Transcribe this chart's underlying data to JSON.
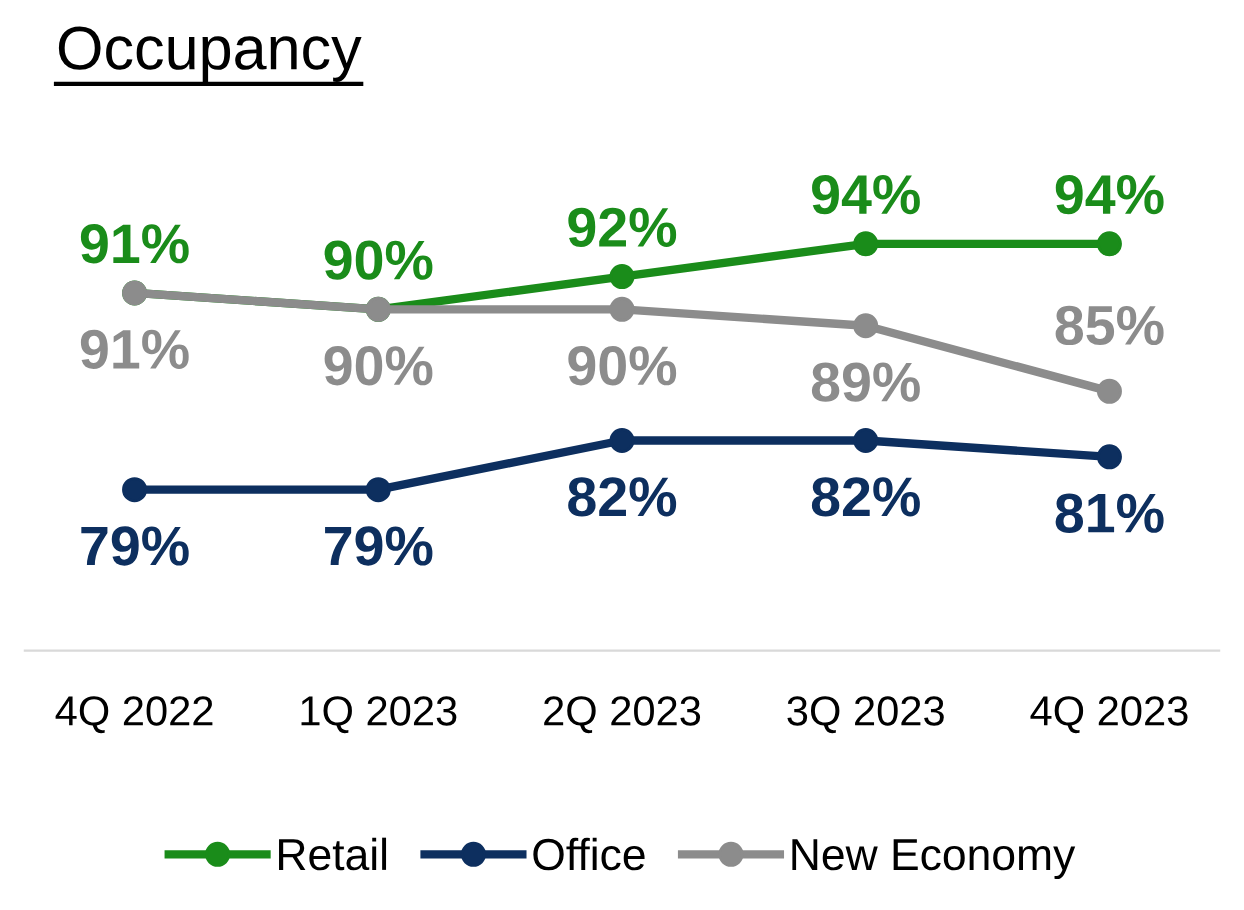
{
  "chart_data": {
    "type": "line",
    "title": "Occupancy",
    "categories": [
      "4Q 2022",
      "1Q 2023",
      "2Q 2023",
      "3Q 2023",
      "4Q 2023"
    ],
    "series": [
      {
        "name": "Retail",
        "color": "#1a8c1a",
        "values": [
          91,
          90,
          92,
          94,
          94
        ],
        "value_labels": [
          "91%",
          "90%",
          "92%",
          "94%",
          "94%"
        ]
      },
      {
        "name": "Office",
        "color": "#0d2f5f",
        "values": [
          79,
          79,
          82,
          82,
          81
        ],
        "value_labels": [
          "79%",
          "79%",
          "82%",
          "82%",
          "81%"
        ]
      },
      {
        "name": "New Economy",
        "color": "#8c8c8c",
        "values": [
          91,
          90,
          90,
          89,
          85
        ],
        "value_labels": [
          "91%",
          "90%",
          "90%",
          "89%",
          "85%"
        ]
      }
    ],
    "tick_labels": "x",
    "legend": "bottom",
    "marker": "circle",
    "line_style": "solid",
    "grid": false
  }
}
